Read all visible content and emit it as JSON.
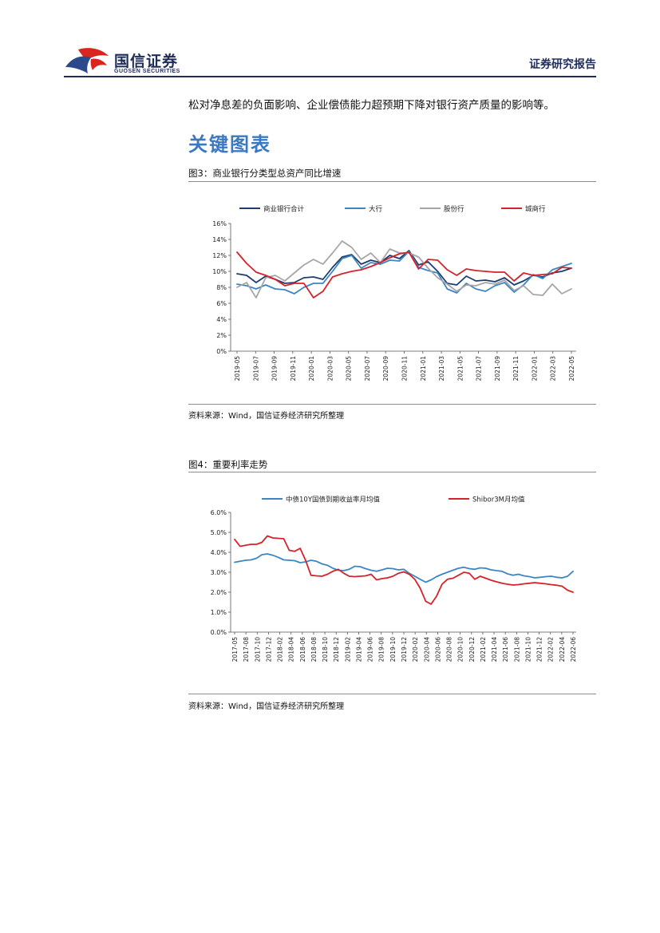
{
  "header": {
    "brand_name": "国信证券",
    "brand_en": "GUOSEN SECURITIES",
    "report_type": "证券研究报告",
    "colors": {
      "brand_navy": "#1e2d5a",
      "brand_red": "#d9251d",
      "brand_blue": "#2b4a8c"
    }
  },
  "body_text": "松对净息差的负面影响、企业偿债能力超预期下降对银行资产质量的影响等。",
  "section_title": "关键图表",
  "section_title_color": "#3a78c2",
  "figures": [
    {
      "title": "图3：商业银行分类型总资产同比增速",
      "source": "资料来源：Wind，国信证券经济研究所整理"
    },
    {
      "title": "图4：重要利率走势",
      "source": "资料来源：Wind，国信证券经济研究所整理"
    }
  ],
  "chart_data": [
    {
      "type": "line",
      "legend_position": "top",
      "grid": false,
      "ylim": [
        0,
        16
      ],
      "y_ticks": [
        "16%",
        "14%",
        "12%",
        "10%",
        "8%",
        "6%",
        "4%",
        "2%",
        "0%"
      ],
      "x_ticks": [
        "2019-05",
        "2019-07",
        "2019-09",
        "2019-11",
        "2020-01",
        "2020-03",
        "2020-05",
        "2020-07",
        "2020-09",
        "2020-11",
        "2021-01",
        "2021-03",
        "2021-05",
        "2021-07",
        "2021-09",
        "2021-11",
        "2022-01",
        "2022-03",
        "2022-05"
      ],
      "series": [
        {
          "name": "商业银行合计",
          "color": "#1f3c6e",
          "values": [
            9.7,
            9.5,
            8.6,
            9.4,
            9.0,
            8.5,
            8.6,
            9.2,
            9.3,
            9.0,
            10.5,
            11.8,
            12.1,
            10.9,
            11.4,
            11.1,
            12.0,
            11.6,
            12.6,
            10.8,
            11.2,
            10.0,
            8.5,
            8.3,
            9.4,
            8.8,
            8.9,
            8.7,
            9.2,
            8.3,
            8.8,
            9.5,
            9.3,
            9.8,
            10.0,
            10.4
          ]
        },
        {
          "name": "大行",
          "color": "#3c86c4",
          "values": [
            8.4,
            8.2,
            7.8,
            8.3,
            7.8,
            7.7,
            7.2,
            8.0,
            8.5,
            8.5,
            10.0,
            11.6,
            12.0,
            10.4,
            11.1,
            10.9,
            11.4,
            11.3,
            12.5,
            10.5,
            10.1,
            9.8,
            7.8,
            7.3,
            8.5,
            7.8,
            7.5,
            8.2,
            8.6,
            7.4,
            8.3,
            9.6,
            9.1,
            10.2,
            10.6,
            11.0
          ]
        },
        {
          "name": "股份行",
          "color": "#a6a6a6",
          "values": [
            8.0,
            8.6,
            6.7,
            9.2,
            9.5,
            8.8,
            9.8,
            10.8,
            11.5,
            10.9,
            12.3,
            13.8,
            13.0,
            11.5,
            12.3,
            11.1,
            12.8,
            12.3,
            12.3,
            11.8,
            10.4,
            9.2,
            8.4,
            7.5,
            8.3,
            8.2,
            8.6,
            8.4,
            8.9,
            7.6,
            8.2,
            7.1,
            7.0,
            8.4,
            7.2,
            7.8
          ]
        },
        {
          "name": "城商行",
          "color": "#d6222a",
          "values": [
            12.4,
            11.0,
            9.9,
            9.5,
            9.0,
            8.2,
            8.5,
            8.5,
            6.7,
            7.5,
            9.3,
            9.7,
            10.0,
            10.2,
            10.6,
            11.1,
            11.7,
            12.2,
            12.4,
            10.3,
            11.5,
            11.4,
            10.2,
            9.5,
            10.3,
            10.1,
            10.0,
            9.9,
            9.9,
            8.8,
            9.8,
            9.5,
            9.6,
            9.7,
            10.5,
            10.4
          ]
        }
      ]
    },
    {
      "type": "line",
      "legend_position": "top",
      "grid": false,
      "ylim": [
        0,
        6
      ],
      "y_ticks": [
        "6.0%",
        "5.0%",
        "4.0%",
        "3.0%",
        "2.0%",
        "1.0%",
        "0.0%"
      ],
      "x_ticks": [
        "2017-05",
        "2017-08",
        "2017-10",
        "2017-12",
        "2018-02",
        "2018-04",
        "2018-06",
        "2018-08",
        "2018-10",
        "2018-12",
        "2019-02",
        "2019-04",
        "2019-06",
        "2019-08",
        "2019-10",
        "2019-12",
        "2020-02",
        "2020-04",
        "2020-06",
        "2020-08",
        "2020-10",
        "2020-12",
        "2021-02",
        "2021-04",
        "2021-06",
        "2021-08",
        "2021-10",
        "2021-12",
        "2022-02",
        "2022-04",
        "2022-06"
      ],
      "series": [
        {
          "name": "中债10Y国债到期收益率月均值",
          "color": "#3c86c4",
          "values": [
            3.5,
            3.55,
            3.6,
            3.62,
            3.7,
            3.88,
            3.92,
            3.85,
            3.75,
            3.62,
            3.6,
            3.58,
            3.48,
            3.52,
            3.6,
            3.55,
            3.42,
            3.35,
            3.2,
            3.1,
            3.08,
            3.15,
            3.3,
            3.28,
            3.18,
            3.1,
            3.05,
            3.12,
            3.2,
            3.18,
            3.12,
            3.15,
            2.95,
            2.8,
            2.65,
            2.5,
            2.62,
            2.78,
            2.9,
            3.0,
            3.1,
            3.2,
            3.25,
            3.18,
            3.15,
            3.22,
            3.2,
            3.12,
            3.08,
            3.05,
            2.92,
            2.85,
            2.9,
            2.82,
            2.78,
            2.72,
            2.75,
            2.78,
            2.8,
            2.75,
            2.72,
            2.8,
            3.05
          ]
        },
        {
          "name": "Shibor3M月均值",
          "color": "#d6222a",
          "values": [
            4.65,
            4.3,
            4.35,
            4.4,
            4.4,
            4.5,
            4.82,
            4.72,
            4.7,
            4.68,
            4.1,
            4.05,
            4.2,
            3.6,
            2.85,
            2.82,
            2.8,
            2.9,
            3.05,
            3.15,
            2.95,
            2.8,
            2.78,
            2.8,
            2.82,
            2.9,
            2.62,
            2.68,
            2.72,
            2.8,
            2.95,
            3.02,
            2.9,
            2.65,
            2.2,
            1.55,
            1.4,
            1.8,
            2.4,
            2.65,
            2.7,
            2.85,
            3.0,
            2.95,
            2.65,
            2.8,
            2.7,
            2.6,
            2.52,
            2.45,
            2.4,
            2.36,
            2.38,
            2.42,
            2.45,
            2.48,
            2.45,
            2.42,
            2.38,
            2.35,
            2.3,
            2.1,
            2.0
          ]
        }
      ]
    }
  ]
}
